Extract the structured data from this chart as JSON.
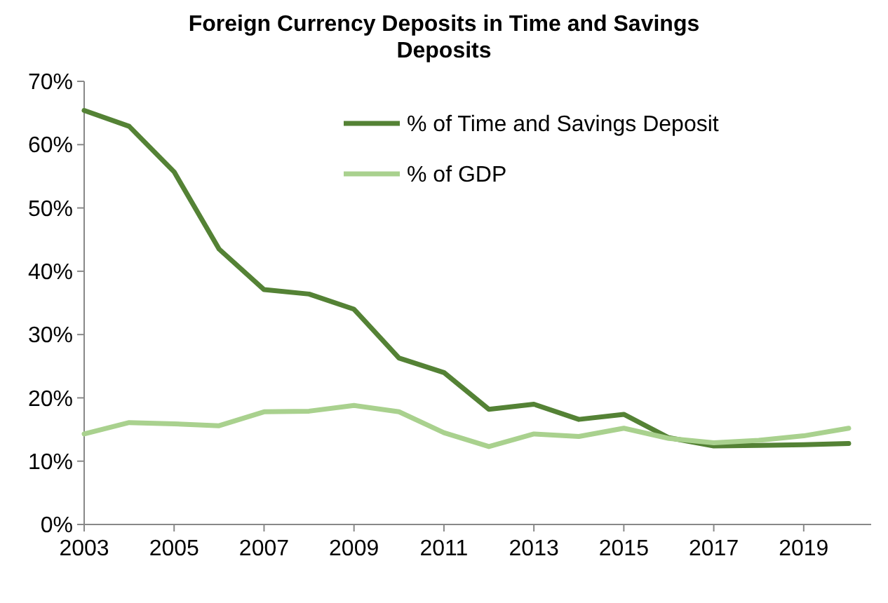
{
  "chart_data": {
    "type": "line",
    "title": "Foreign Currency Deposits in Time and Savings Deposits",
    "x": [
      2003,
      2004,
      2005,
      2006,
      2007,
      2008,
      2009,
      2010,
      2011,
      2012,
      2013,
      2014,
      2015,
      2016,
      2017,
      2018,
      2019,
      2020
    ],
    "series": [
      {
        "name": "% of Time and Savings Deposit",
        "color": "#548235",
        "values": [
          65.4,
          62.9,
          55.7,
          43.5,
          37.1,
          36.4,
          34,
          26.3,
          24,
          18.2,
          19,
          16.6,
          17.4,
          13.7,
          12.4,
          12.5,
          12.6,
          12.8
        ]
      },
      {
        "name": "% of GDP",
        "color": "#a9d18e",
        "values": [
          14.3,
          16.1,
          15.9,
          15.6,
          17.8,
          17.9,
          18.8,
          17.8,
          14.5,
          12.3,
          14.3,
          13.9,
          15.2,
          13.6,
          12.9,
          13.3,
          14,
          15.2
        ]
      }
    ],
    "xlim": [
      2003,
      2020.5
    ],
    "xticks": [
      2003,
      2005,
      2007,
      2009,
      2011,
      2013,
      2015,
      2017,
      2019
    ],
    "ylim": [
      0,
      70
    ],
    "yticks": [
      {
        "value": 0,
        "label": "0%"
      },
      {
        "value": 10,
        "label": "10%"
      },
      {
        "value": 20,
        "label": "20%"
      },
      {
        "value": 30,
        "label": "30%"
      },
      {
        "value": 40,
        "label": "40%"
      },
      {
        "value": 50,
        "label": "50%"
      },
      {
        "value": 60,
        "label": "60%"
      },
      {
        "value": 70,
        "label": "70%"
      }
    ],
    "grid": false,
    "legend": "top right",
    "marker": "none",
    "line_style": "solid"
  }
}
